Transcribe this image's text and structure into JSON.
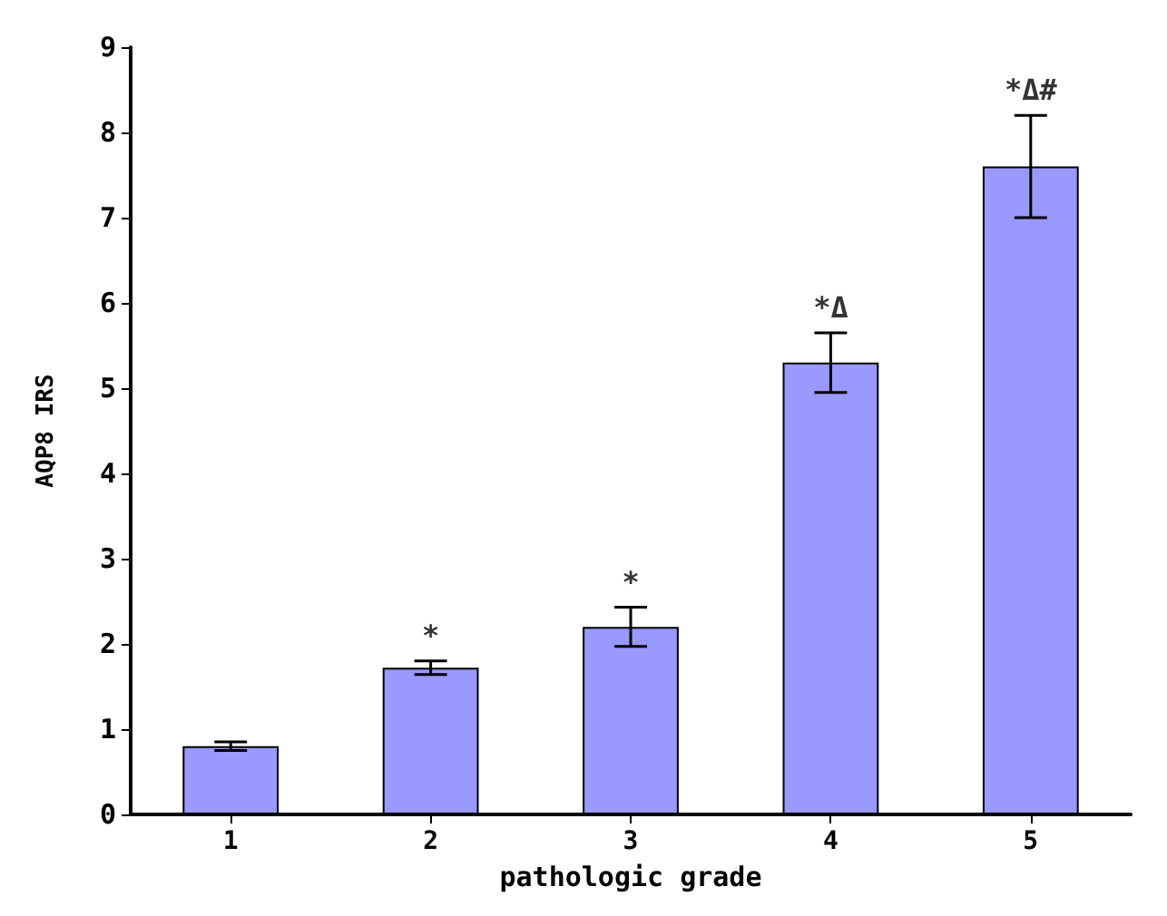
{
  "chart_data": {
    "type": "bar",
    "xlabel": "pathologic grade",
    "ylabel": "AQP8 IRS",
    "categories": [
      "1",
      "2",
      "3",
      "4",
      "5"
    ],
    "values": [
      0.8,
      1.72,
      2.2,
      5.3,
      7.6
    ],
    "errors": [
      0.05,
      0.08,
      0.23,
      0.35,
      0.6
    ],
    "color": "#9999ff",
    "ylim": [
      0,
      9
    ],
    "yticks": [
      0,
      1,
      2,
      3,
      4,
      5,
      6,
      7,
      8,
      9
    ],
    "grid": false,
    "value_labels": [
      null,
      "*",
      "*",
      "*Δ",
      "*Δ#"
    ]
  }
}
